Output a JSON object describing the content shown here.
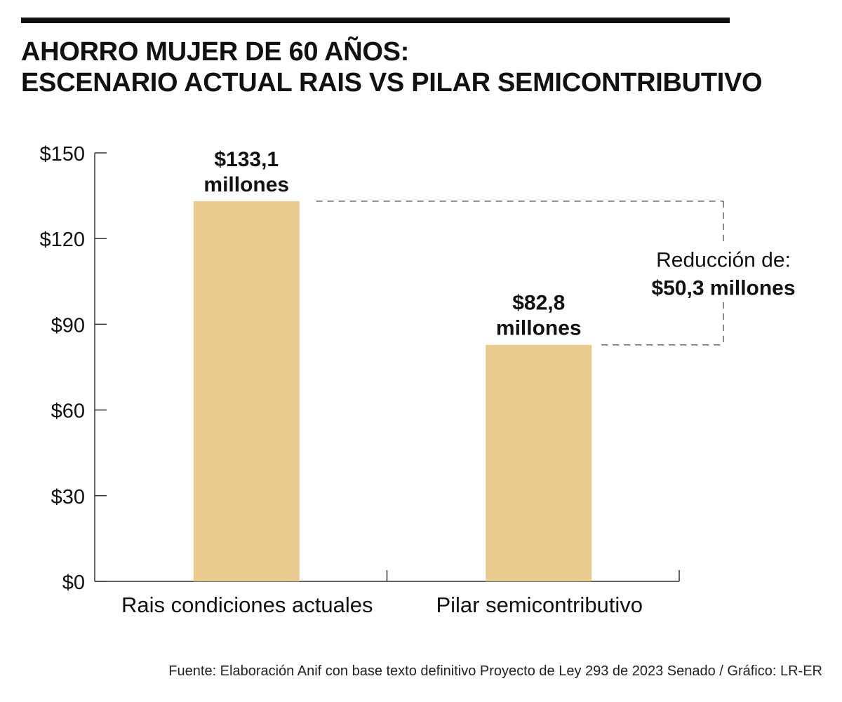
{
  "title": {
    "line1": "AHORRO MUJER DE 60 AÑOS:",
    "line2": "ESCENARIO ACTUAL RAIS VS PILAR SEMICONTRIBUTIVO"
  },
  "chart_data": {
    "type": "bar",
    "categories": [
      "Rais condiciones actuales",
      "Pilar semicontributivo"
    ],
    "values": [
      133.1,
      82.8
    ],
    "data_labels": [
      [
        "$133,1",
        "millones"
      ],
      [
        "$82,8",
        "millones"
      ]
    ],
    "ylim": [
      0,
      150
    ],
    "yticks": [
      0,
      30,
      60,
      90,
      120,
      150
    ],
    "ytick_labels": [
      "$0",
      "$30",
      "$60",
      "$90",
      "$120",
      "$150"
    ],
    "xlabel": "",
    "ylabel": "",
    "grid": false,
    "legend": "none",
    "bar_color": "#E9CB8F",
    "annotation": {
      "line1": "Reducción de:",
      "line2": "$50,3 millones",
      "difference": 50.3
    }
  },
  "source": "Fuente: Elaboración Anif con base texto definitivo Proyecto de Ley 293 de 2023 Senado / Gráfico: LR-ER"
}
